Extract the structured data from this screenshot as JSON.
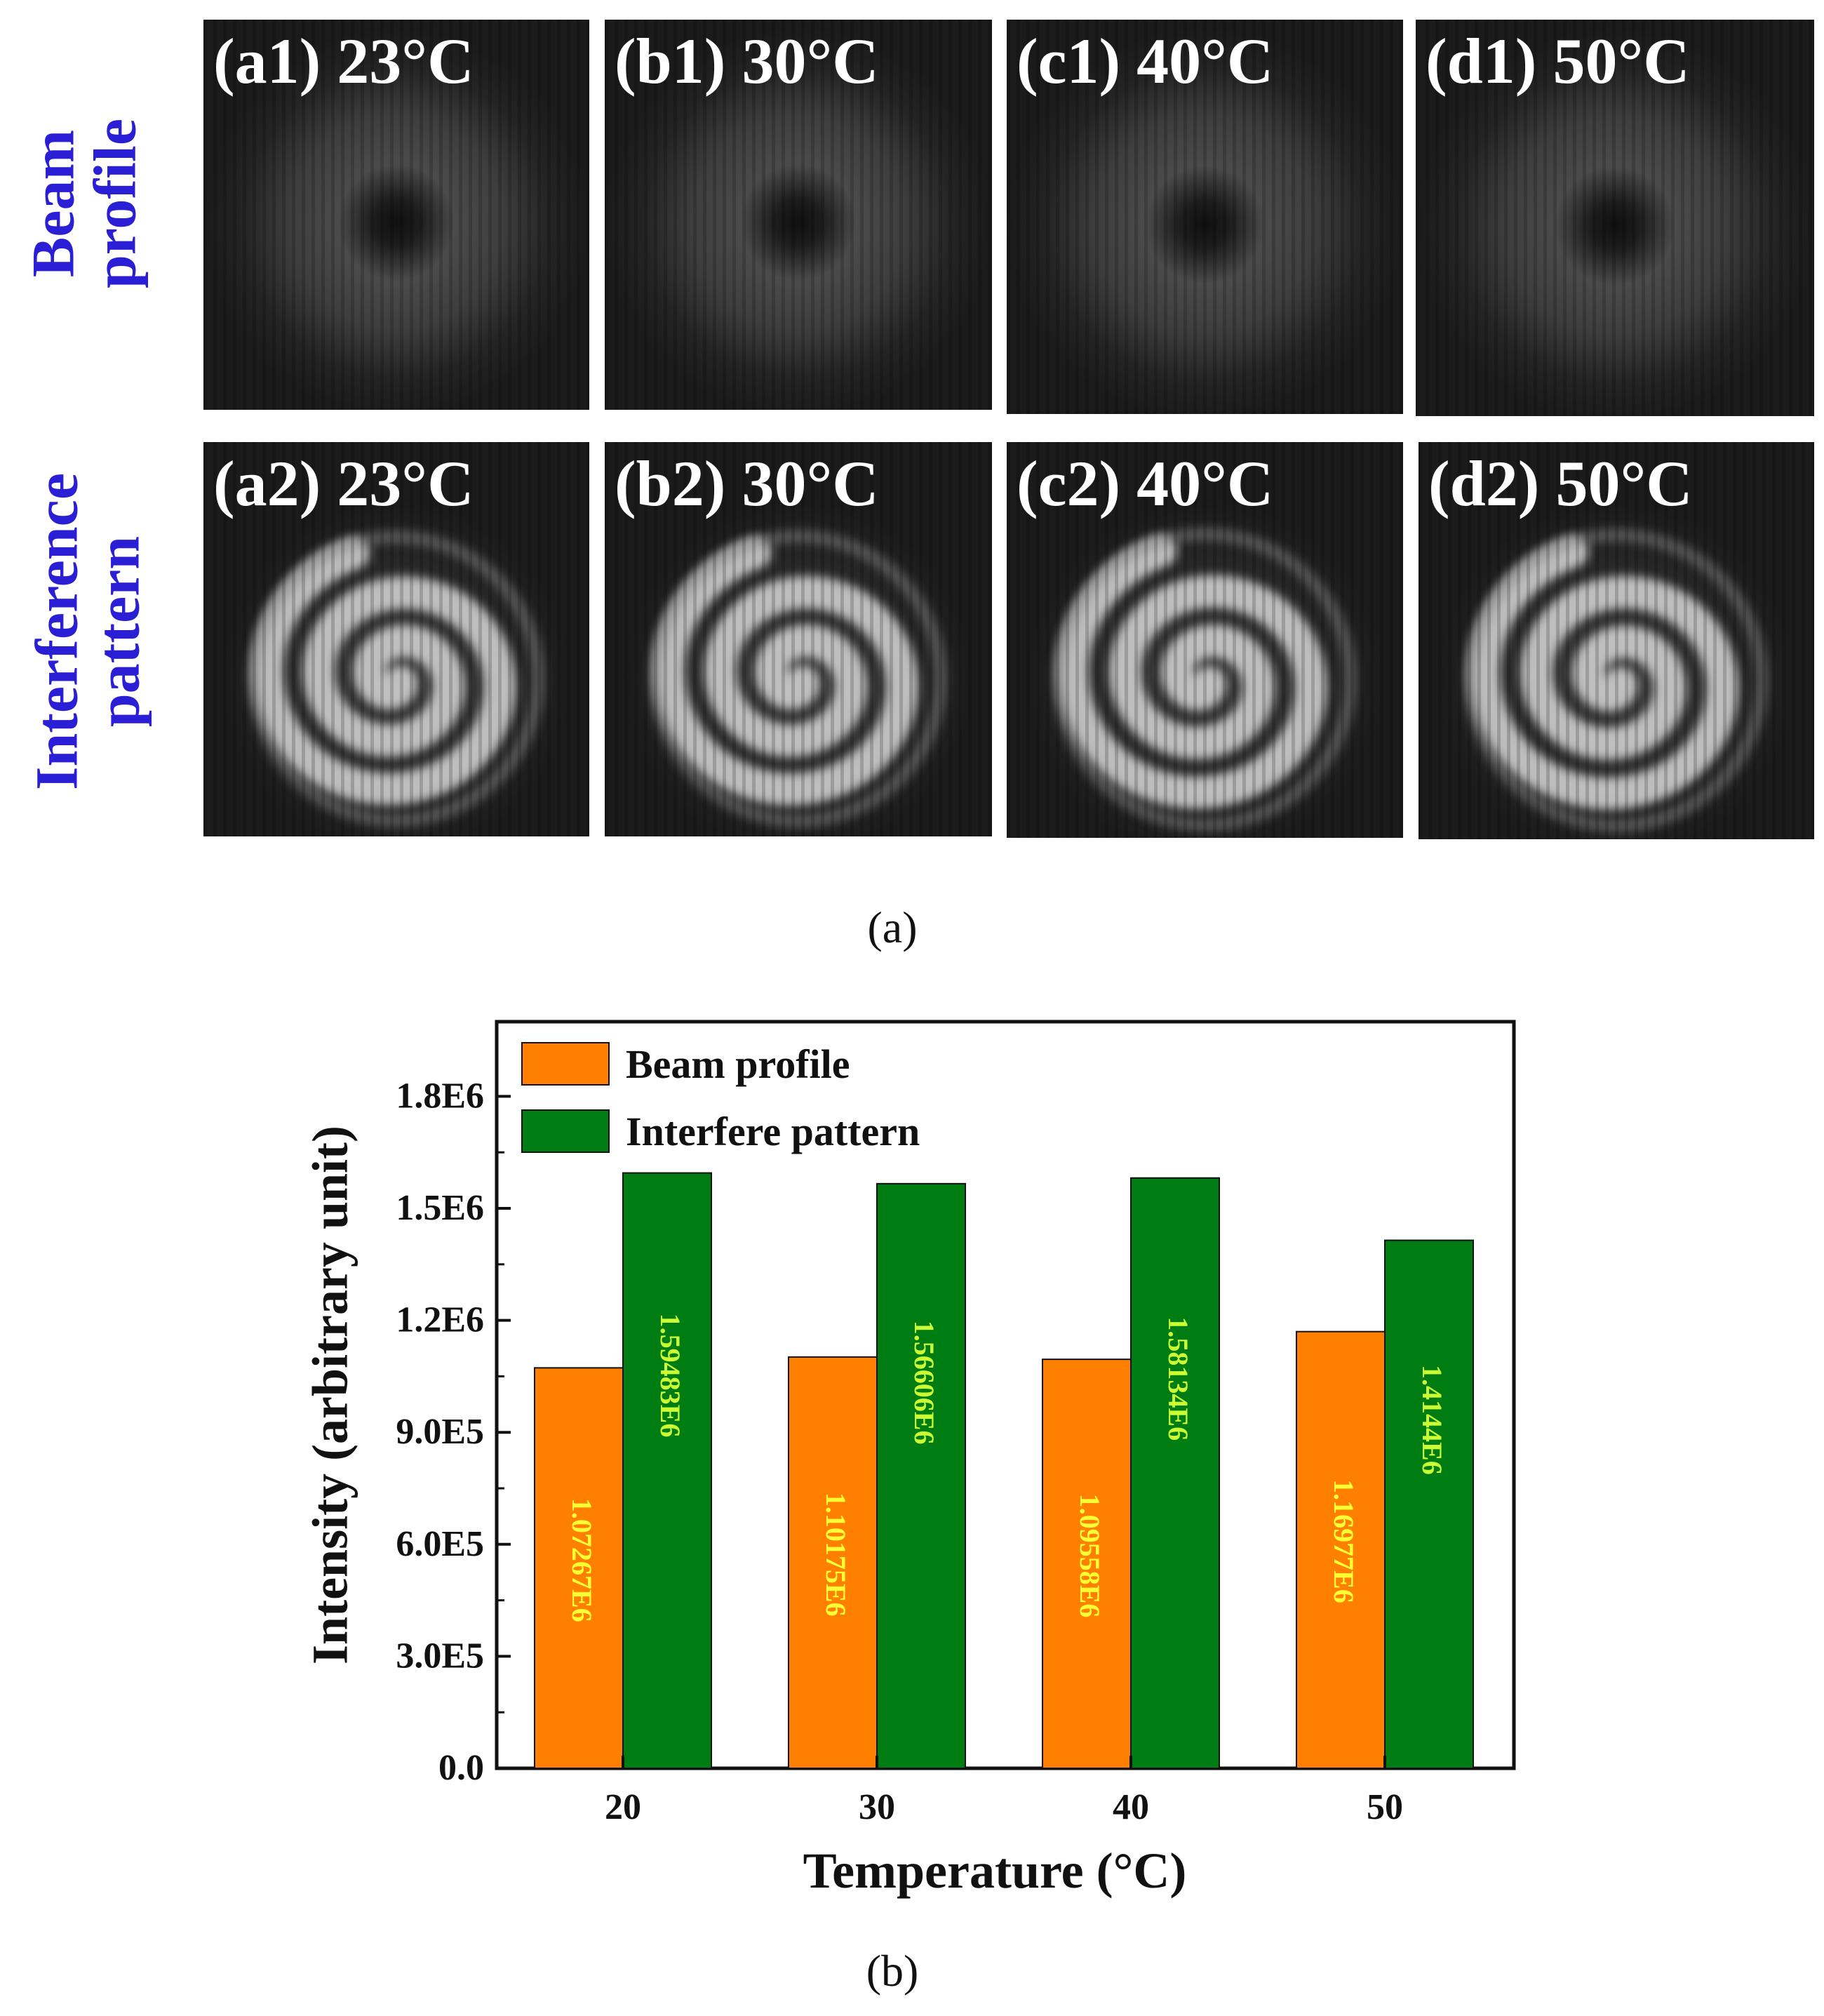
{
  "panel_a": {
    "row_labels": [
      {
        "line1": "Beam",
        "line2": "profile"
      },
      {
        "line1": "Interference",
        "line2": "pattern"
      }
    ],
    "rows": [
      {
        "kind": "beam",
        "cells": [
          {
            "label": "(a1) 23°C"
          },
          {
            "label": "(b1) 30°C"
          },
          {
            "label": "(c1) 40°C"
          },
          {
            "label": "(d1) 50°C"
          }
        ]
      },
      {
        "kind": "interference",
        "cells": [
          {
            "label": "(a2) 23°C"
          },
          {
            "label": "(b2) 30°C"
          },
          {
            "label": "(c2) 40°C"
          },
          {
            "label": "(d2) 50°C"
          }
        ]
      }
    ],
    "caption": "(a)"
  },
  "panel_b": {
    "caption": "(b)"
  },
  "colors": {
    "beam": "#ff8000",
    "interfere": "#007d12",
    "beam_value_text": "#ffff33",
    "interfere_value_text": "#ccff33",
    "row_label": "#2b1fd6"
  },
  "chart_data": {
    "type": "bar",
    "categories": [
      "20",
      "30",
      "40",
      "50"
    ],
    "series": [
      {
        "name": "Beam profile",
        "values": [
          1072670,
          1101750,
          1095580,
          1169770
        ],
        "value_labels": [
          "1.07267E6",
          "1.10175E6",
          "1.09558E6",
          "1.16977E6"
        ]
      },
      {
        "name": "Interfere pattern",
        "values": [
          1594830,
          1566060,
          1581340,
          1414400
        ],
        "value_labels": [
          "1.59483E6",
          "1.56606E6",
          "1.58134E6",
          "1.4144E6"
        ]
      }
    ],
    "xlabel": "Temperature (°C)",
    "ylabel": "Intensity (arbitrary unit)",
    "ylim": [
      0,
      2000000
    ],
    "yticks": [
      0,
      300000,
      600000,
      900000,
      1200000,
      1500000,
      1800000
    ],
    "ytick_labels": [
      "0.0",
      "3.0E5",
      "6.0E5",
      "9.0E5",
      "1.2E6",
      "1.5E6",
      "1.8E6"
    ],
    "legend_position": "top-left",
    "grid": false
  }
}
